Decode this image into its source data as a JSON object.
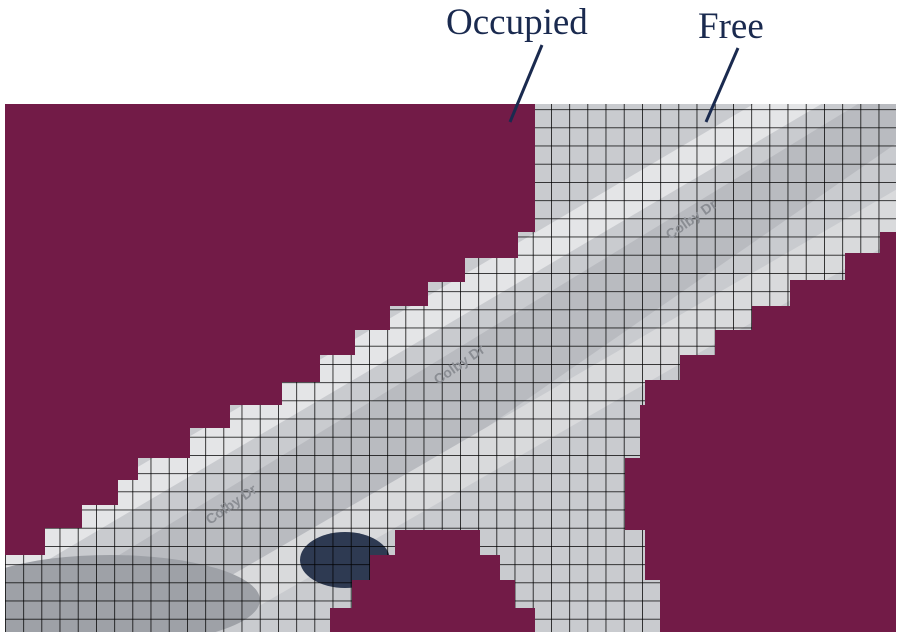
{
  "labels": {
    "occupied": "Occupied",
    "free": "Free"
  },
  "map_text": {
    "street_name": "Colby Dr"
  },
  "colors": {
    "occupied": "#721b47",
    "free_cell": "#c9cbcf",
    "grid_line": "#000000",
    "label_text": "#1a2a4f",
    "pointer_line": "#1a2a4f"
  }
}
